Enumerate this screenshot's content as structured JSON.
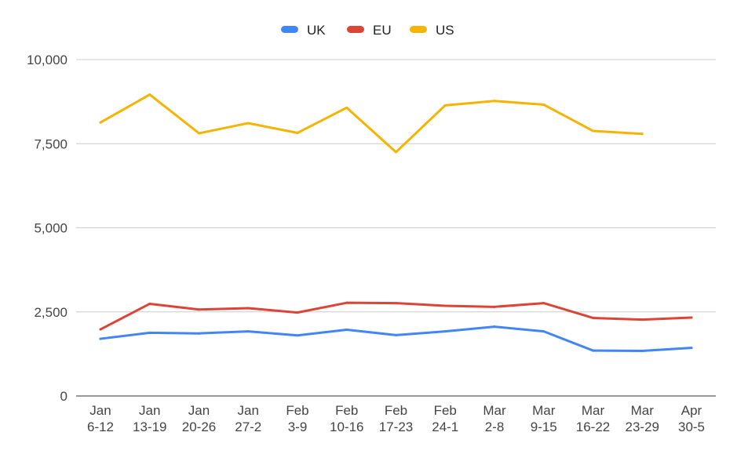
{
  "chart_data": {
    "type": "line",
    "categories": [
      [
        "Jan",
        "6-12"
      ],
      [
        "Jan",
        "13-19"
      ],
      [
        "Jan",
        "20-26"
      ],
      [
        "Jan",
        "27-2"
      ],
      [
        "Feb",
        "3-9"
      ],
      [
        "Feb",
        "10-16"
      ],
      [
        "Feb",
        "17-23"
      ],
      [
        "Feb",
        "24-1"
      ],
      [
        "Mar",
        "2-8"
      ],
      [
        "Mar",
        "9-15"
      ],
      [
        "Mar",
        "16-22"
      ],
      [
        "Mar",
        "23-29"
      ],
      [
        "Apr",
        "30-5"
      ]
    ],
    "series": [
      {
        "name": "UK",
        "color": "#4285F4",
        "values": [
          1700,
          1880,
          1860,
          1920,
          1800,
          1970,
          1810,
          1920,
          2060,
          1920,
          1350,
          1340,
          1430
        ]
      },
      {
        "name": "EU",
        "color": "#DB4437",
        "values": [
          1980,
          2740,
          2570,
          2610,
          2480,
          2770,
          2760,
          2680,
          2650,
          2760,
          2320,
          2270,
          2330
        ]
      },
      {
        "name": "US",
        "color": "#F4B400",
        "values": [
          8130,
          8960,
          7810,
          8110,
          7820,
          8570,
          7250,
          8640,
          8770,
          8660,
          7880,
          7790,
          null
        ]
      }
    ],
    "y_ticks": [
      "0",
      "2,500",
      "5,000",
      "7,500",
      "10,000"
    ],
    "y_tick_values": [
      0,
      2500,
      5000,
      7500,
      10000
    ],
    "ylim": [
      0,
      10000
    ],
    "title": "",
    "xlabel": "",
    "ylabel": "",
    "grid": true,
    "legend_position": "top-center"
  }
}
